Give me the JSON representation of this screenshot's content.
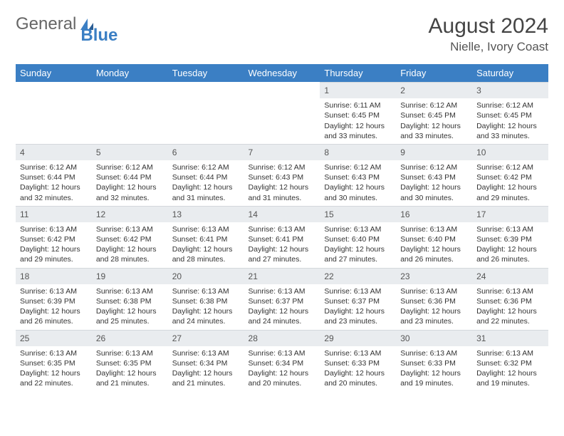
{
  "colors": {
    "header_bg": "#3b7fc4",
    "header_text": "#ffffff",
    "daynum_bg": "#e9ecef",
    "body_text": "#333333",
    "logo_gray": "#666666",
    "logo_blue": "#3b7fc4"
  },
  "logo": {
    "part1": "General",
    "part2": "Blue"
  },
  "title": "August 2024",
  "location": "Nielle, Ivory Coast",
  "weekdays": [
    "Sunday",
    "Monday",
    "Tuesday",
    "Wednesday",
    "Thursday",
    "Friday",
    "Saturday"
  ],
  "weeks": [
    [
      null,
      null,
      null,
      null,
      {
        "n": "1",
        "sr": "6:11 AM",
        "ss": "6:45 PM",
        "dl": "12 hours and 33 minutes."
      },
      {
        "n": "2",
        "sr": "6:12 AM",
        "ss": "6:45 PM",
        "dl": "12 hours and 33 minutes."
      },
      {
        "n": "3",
        "sr": "6:12 AM",
        "ss": "6:45 PM",
        "dl": "12 hours and 33 minutes."
      }
    ],
    [
      {
        "n": "4",
        "sr": "6:12 AM",
        "ss": "6:44 PM",
        "dl": "12 hours and 32 minutes."
      },
      {
        "n": "5",
        "sr": "6:12 AM",
        "ss": "6:44 PM",
        "dl": "12 hours and 32 minutes."
      },
      {
        "n": "6",
        "sr": "6:12 AM",
        "ss": "6:44 PM",
        "dl": "12 hours and 31 minutes."
      },
      {
        "n": "7",
        "sr": "6:12 AM",
        "ss": "6:43 PM",
        "dl": "12 hours and 31 minutes."
      },
      {
        "n": "8",
        "sr": "6:12 AM",
        "ss": "6:43 PM",
        "dl": "12 hours and 30 minutes."
      },
      {
        "n": "9",
        "sr": "6:12 AM",
        "ss": "6:43 PM",
        "dl": "12 hours and 30 minutes."
      },
      {
        "n": "10",
        "sr": "6:12 AM",
        "ss": "6:42 PM",
        "dl": "12 hours and 29 minutes."
      }
    ],
    [
      {
        "n": "11",
        "sr": "6:13 AM",
        "ss": "6:42 PM",
        "dl": "12 hours and 29 minutes."
      },
      {
        "n": "12",
        "sr": "6:13 AM",
        "ss": "6:42 PM",
        "dl": "12 hours and 28 minutes."
      },
      {
        "n": "13",
        "sr": "6:13 AM",
        "ss": "6:41 PM",
        "dl": "12 hours and 28 minutes."
      },
      {
        "n": "14",
        "sr": "6:13 AM",
        "ss": "6:41 PM",
        "dl": "12 hours and 27 minutes."
      },
      {
        "n": "15",
        "sr": "6:13 AM",
        "ss": "6:40 PM",
        "dl": "12 hours and 27 minutes."
      },
      {
        "n": "16",
        "sr": "6:13 AM",
        "ss": "6:40 PM",
        "dl": "12 hours and 26 minutes."
      },
      {
        "n": "17",
        "sr": "6:13 AM",
        "ss": "6:39 PM",
        "dl": "12 hours and 26 minutes."
      }
    ],
    [
      {
        "n": "18",
        "sr": "6:13 AM",
        "ss": "6:39 PM",
        "dl": "12 hours and 26 minutes."
      },
      {
        "n": "19",
        "sr": "6:13 AM",
        "ss": "6:38 PM",
        "dl": "12 hours and 25 minutes."
      },
      {
        "n": "20",
        "sr": "6:13 AM",
        "ss": "6:38 PM",
        "dl": "12 hours and 24 minutes."
      },
      {
        "n": "21",
        "sr": "6:13 AM",
        "ss": "6:37 PM",
        "dl": "12 hours and 24 minutes."
      },
      {
        "n": "22",
        "sr": "6:13 AM",
        "ss": "6:37 PM",
        "dl": "12 hours and 23 minutes."
      },
      {
        "n": "23",
        "sr": "6:13 AM",
        "ss": "6:36 PM",
        "dl": "12 hours and 23 minutes."
      },
      {
        "n": "24",
        "sr": "6:13 AM",
        "ss": "6:36 PM",
        "dl": "12 hours and 22 minutes."
      }
    ],
    [
      {
        "n": "25",
        "sr": "6:13 AM",
        "ss": "6:35 PM",
        "dl": "12 hours and 22 minutes."
      },
      {
        "n": "26",
        "sr": "6:13 AM",
        "ss": "6:35 PM",
        "dl": "12 hours and 21 minutes."
      },
      {
        "n": "27",
        "sr": "6:13 AM",
        "ss": "6:34 PM",
        "dl": "12 hours and 21 minutes."
      },
      {
        "n": "28",
        "sr": "6:13 AM",
        "ss": "6:34 PM",
        "dl": "12 hours and 20 minutes."
      },
      {
        "n": "29",
        "sr": "6:13 AM",
        "ss": "6:33 PM",
        "dl": "12 hours and 20 minutes."
      },
      {
        "n": "30",
        "sr": "6:13 AM",
        "ss": "6:33 PM",
        "dl": "12 hours and 19 minutes."
      },
      {
        "n": "31",
        "sr": "6:13 AM",
        "ss": "6:32 PM",
        "dl": "12 hours and 19 minutes."
      }
    ]
  ],
  "labels": {
    "sunrise": "Sunrise:",
    "sunset": "Sunset:",
    "daylight": "Daylight:"
  }
}
